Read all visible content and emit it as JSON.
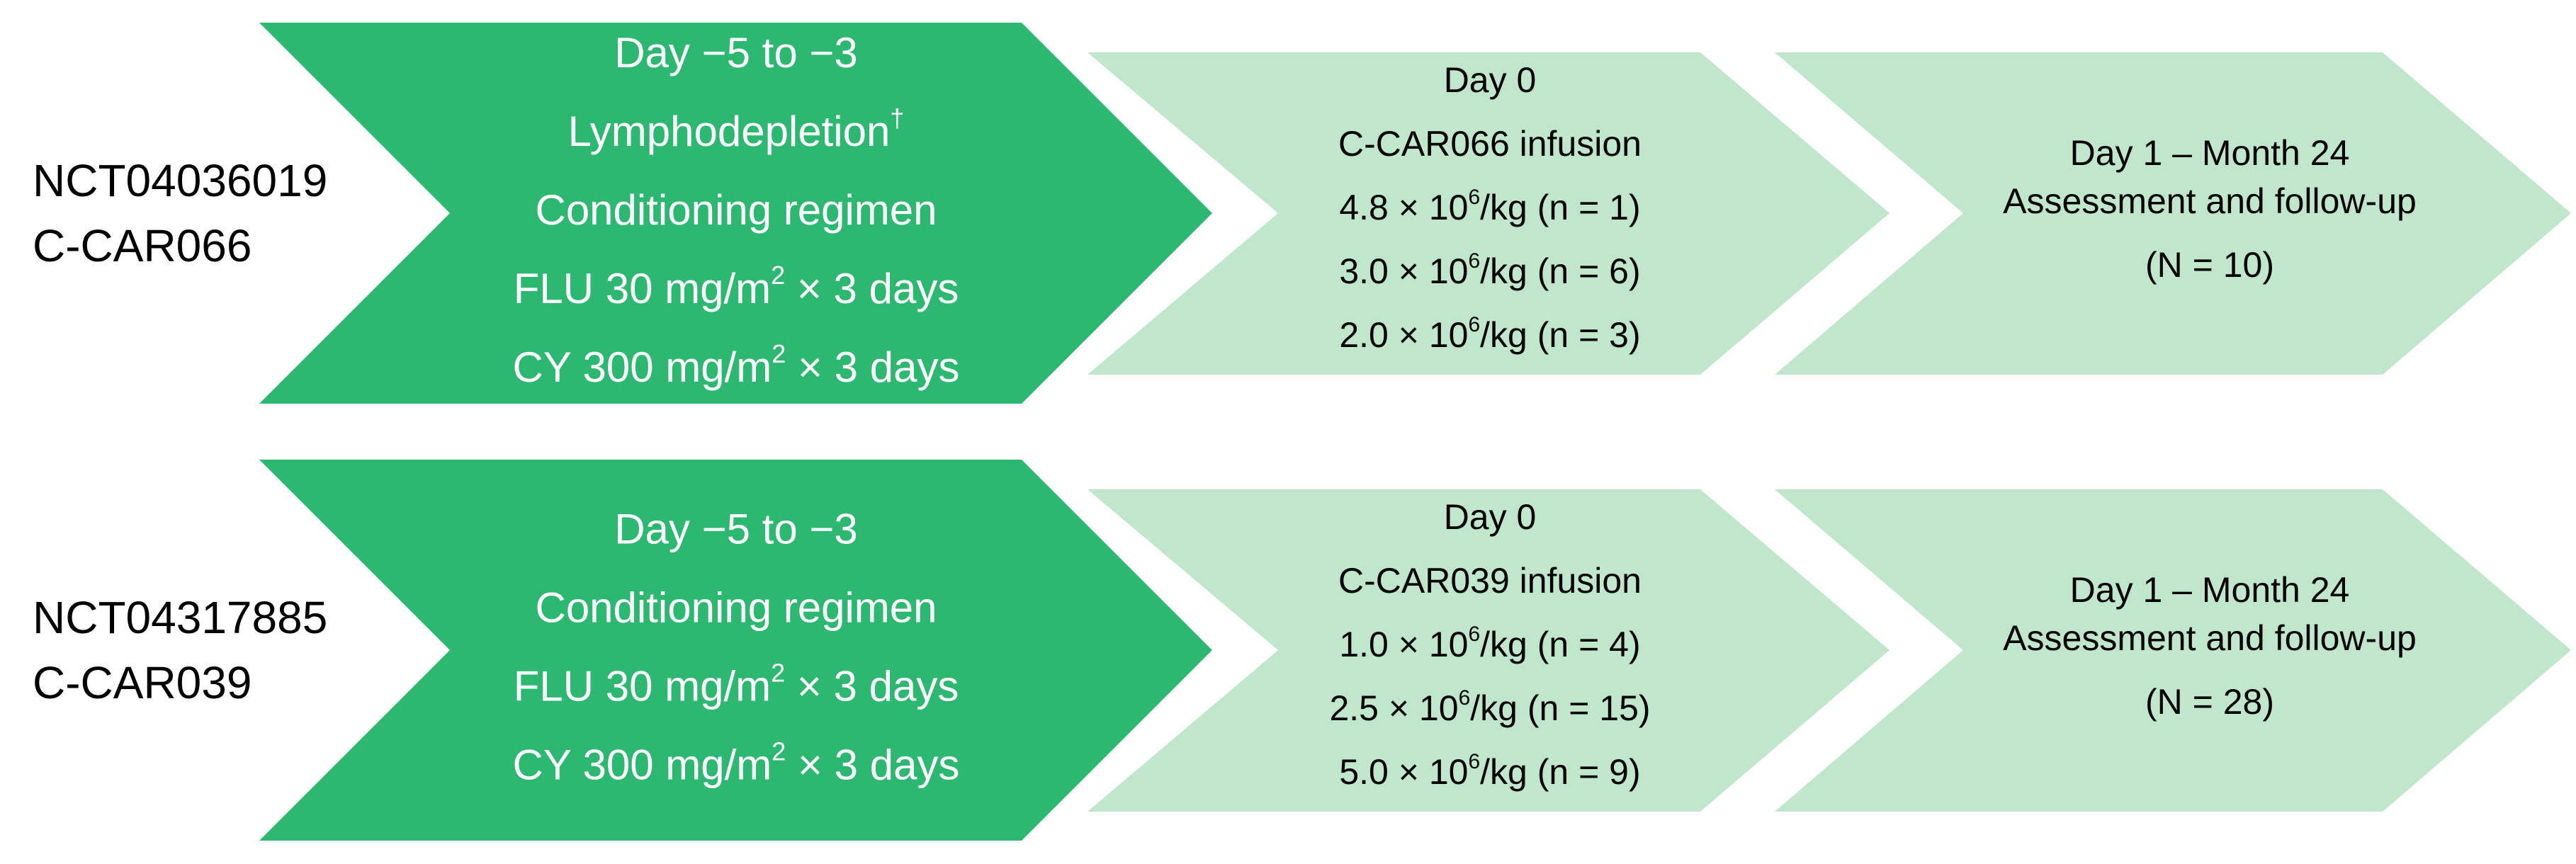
{
  "rows": [
    {
      "trial": "NCT04036019",
      "product": "C-CAR066",
      "steps": [
        {
          "lines": [
            [
              {
                "t": "Day −5 to −3"
              }
            ],
            [
              {
                "t": "Lymphodepletion"
              },
              {
                "sup": "†"
              }
            ],
            [
              {
                "t": "Conditioning regimen"
              }
            ],
            [
              {
                "t": "FLU 30 mg/m"
              },
              {
                "sup": "2"
              },
              {
                "t": " × 3 days"
              }
            ],
            [
              {
                "t": "CY 300 mg/m"
              },
              {
                "sup": "2"
              },
              {
                "t": " × 3 days"
              }
            ]
          ]
        },
        {
          "lines": [
            [
              {
                "t": "Day 0"
              }
            ],
            [
              {
                "t": "C-CAR066 infusion"
              }
            ],
            [
              {
                "t": "4.8 × 10"
              },
              {
                "sup": "6"
              },
              {
                "t": "/kg (n = 1)"
              }
            ],
            [
              {
                "t": "3.0 × 10"
              },
              {
                "sup": "6"
              },
              {
                "t": "/kg (n = 6)"
              }
            ],
            [
              {
                "t": "2.0 × 10"
              },
              {
                "sup": "6"
              },
              {
                "t": "/kg (n = 3)"
              }
            ]
          ]
        },
        {
          "lines": [
            [
              {
                "t": "Day 1 – Month 24"
              }
            ],
            [
              {
                "t": "Assessment and follow-up"
              }
            ],
            [
              {
                "t": "(N = 10)"
              }
            ]
          ]
        }
      ]
    },
    {
      "trial": "NCT04317885",
      "product": "C-CAR039",
      "steps": [
        {
          "lines": [
            [
              {
                "t": "Day −5 to −3"
              }
            ],
            [
              {
                "t": "Conditioning regimen"
              }
            ],
            [
              {
                "t": "FLU 30 mg/m"
              },
              {
                "sup": "2"
              },
              {
                "t": " × 3 days"
              }
            ],
            [
              {
                "t": "CY 300 mg/m"
              },
              {
                "sup": "2"
              },
              {
                "t": " × 3 days"
              }
            ]
          ]
        },
        {
          "lines": [
            [
              {
                "t": "Day 0"
              }
            ],
            [
              {
                "t": "C-CAR039 infusion"
              }
            ],
            [
              {
                "t": "1.0 × 10"
              },
              {
                "sup": "6"
              },
              {
                "t": "/kg (n = 4)"
              }
            ],
            [
              {
                "t": "2.5 × 10"
              },
              {
                "sup": "6"
              },
              {
                "t": "/kg (n = 15)"
              }
            ],
            [
              {
                "t": "5.0 × 10"
              },
              {
                "sup": "6"
              },
              {
                "t": "/kg (n = 9)"
              }
            ]
          ]
        },
        {
          "lines": [
            [
              {
                "t": "Day 1 – Month 24"
              }
            ],
            [
              {
                "t": "Assessment and follow-up"
              }
            ],
            [
              {
                "t": "(N = 28)"
              }
            ]
          ]
        }
      ]
    }
  ]
}
